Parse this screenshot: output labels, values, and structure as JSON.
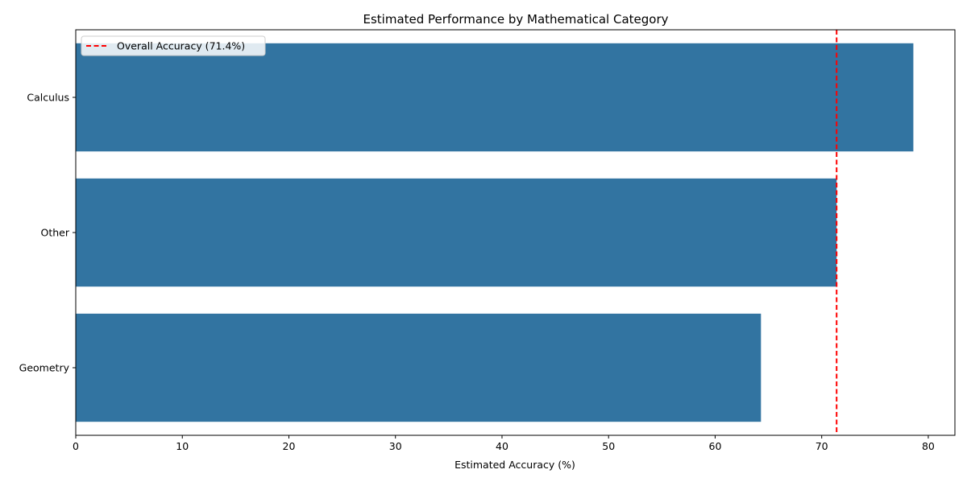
{
  "chart_data": {
    "type": "bar",
    "orientation": "horizontal",
    "title": "Estimated Performance by Mathematical Category",
    "xlabel": "Estimated Accuracy (%)",
    "ylabel": "",
    "categories": [
      "Calculus",
      "Other",
      "Geometry"
    ],
    "values": [
      78.6,
      71.4,
      64.3
    ],
    "xlim": [
      0,
      82.5
    ],
    "xticks": [
      0,
      10,
      20,
      30,
      40,
      50,
      60,
      70,
      80
    ],
    "grid": false,
    "bar_color": "#3274a1",
    "reference_line": {
      "value": 71.4,
      "label": "Overall Accuracy (71.4%)",
      "color": "#ff0000",
      "style": "dashed"
    },
    "legend": {
      "placement": "top-left",
      "entries": [
        "Overall Accuracy (71.4%)"
      ]
    }
  }
}
